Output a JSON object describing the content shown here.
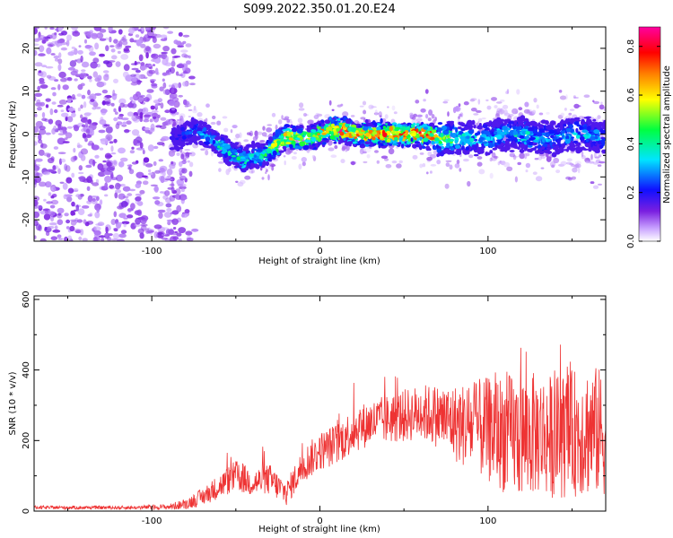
{
  "title": "S099.2022.350.01.20.E24",
  "chart_data": [
    {
      "type": "heatmap",
      "xlabel": "Height of straight line (km)",
      "ylabel": "Frequency (Hz)",
      "xlim": [
        -170,
        170
      ],
      "ylim": [
        -25,
        25
      ],
      "xticks": [
        -100,
        0,
        100
      ],
      "yticks": [
        -20,
        -10,
        0,
        10,
        20
      ],
      "colorbar": {
        "label": "Normalized spectral amplitude",
        "range": [
          0.0,
          0.88
        ],
        "ticks": [
          0.0,
          0.2,
          0.4,
          0.6,
          0.8
        ]
      },
      "ridge": {
        "x": [
          -85,
          -75,
          -65,
          -55,
          -50,
          -45,
          -40,
          -35,
          -30,
          -25,
          -20,
          -15,
          -10,
          -5,
          0,
          5,
          10,
          15,
          20,
          25,
          30,
          40,
          50,
          60,
          70,
          80,
          90,
          100,
          110,
          120,
          130,
          140,
          150,
          160,
          168
        ],
        "frequency": [
          -1,
          1,
          -1,
          -4,
          -5,
          -6,
          -5,
          -5,
          -4,
          -2,
          -1,
          -1,
          -1,
          -1,
          0,
          1,
          1,
          1,
          0,
          0,
          0,
          0,
          0,
          0,
          -1,
          -1,
          -1,
          -1,
          0,
          0,
          -1,
          -1,
          0,
          0,
          -1
        ],
        "amplitude": [
          0.15,
          0.25,
          0.3,
          0.45,
          0.4,
          0.45,
          0.35,
          0.4,
          0.5,
          0.65,
          0.72,
          0.68,
          0.62,
          0.55,
          0.65,
          0.75,
          0.85,
          0.82,
          0.7,
          0.72,
          0.7,
          0.8,
          0.78,
          0.82,
          0.65,
          0.4,
          0.35,
          0.3,
          0.35,
          0.38,
          0.3,
          0.28,
          0.35,
          0.3,
          0.25
        ]
      }
    },
    {
      "type": "line",
      "xlabel": "Height of straight line (km)",
      "ylabel": "SNR (10 * v/v)",
      "xlim": [
        -170,
        170
      ],
      "ylim": [
        0,
        610
      ],
      "xticks": [
        -100,
        0,
        100
      ],
      "yticks": [
        0,
        200,
        400,
        600
      ],
      "series": [
        {
          "color": "#ee3333",
          "x": [
            -170,
            -150,
            -130,
            -110,
            -90,
            -80,
            -70,
            -60,
            -50,
            -40,
            -30,
            -20,
            -10,
            0,
            10,
            20,
            30,
            40,
            50,
            60,
            70,
            80,
            90,
            100,
            110,
            120,
            130,
            140,
            150,
            160,
            170
          ],
          "values": [
            10,
            10,
            10,
            10,
            12,
            20,
            40,
            70,
            100,
            80,
            90,
            50,
            130,
            170,
            190,
            230,
            250,
            260,
            270,
            280,
            270,
            250,
            240,
            230,
            220,
            210,
            220,
            210,
            220,
            230,
            220
          ],
          "variability": [
            5,
            5,
            5,
            5,
            8,
            15,
            25,
            35,
            45,
            40,
            45,
            35,
            50,
            55,
            60,
            65,
            65,
            70,
            75,
            80,
            90,
            110,
            130,
            150,
            170,
            180,
            175,
            175,
            180,
            190,
            180
          ]
        }
      ]
    }
  ]
}
